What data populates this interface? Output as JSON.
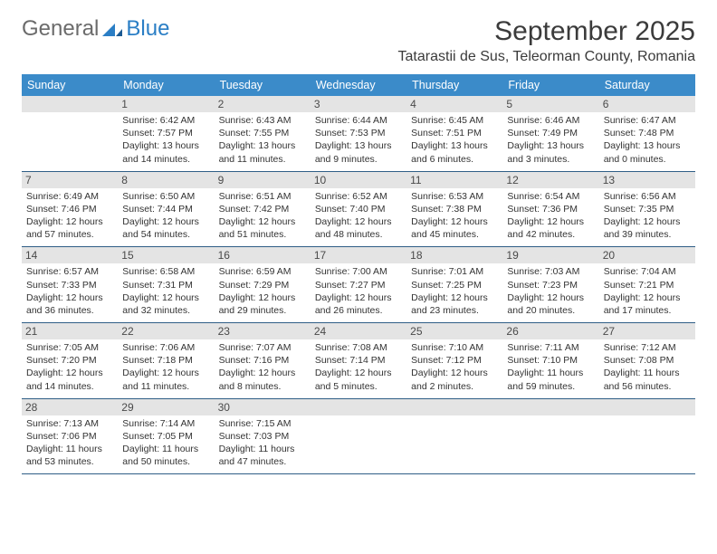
{
  "logo": {
    "part1": "General",
    "part2": "Blue"
  },
  "title": "September 2025",
  "subtitle": "Tatarastii de Sus, Teleorman County, Romania",
  "colors": {
    "header_bg": "#3b8bc9",
    "header_text": "#ffffff",
    "daynum_bg": "#e4e4e4",
    "border": "#2f5e86",
    "logo_gray": "#6b6b6b",
    "logo_blue": "#2a7ec5"
  },
  "dayNames": [
    "Sunday",
    "Monday",
    "Tuesday",
    "Wednesday",
    "Thursday",
    "Friday",
    "Saturday"
  ],
  "weeks": [
    [
      {
        "n": "",
        "sr": "",
        "ss": "",
        "d1": "",
        "d2": ""
      },
      {
        "n": "1",
        "sr": "Sunrise: 6:42 AM",
        "ss": "Sunset: 7:57 PM",
        "d1": "Daylight: 13 hours",
        "d2": "and 14 minutes."
      },
      {
        "n": "2",
        "sr": "Sunrise: 6:43 AM",
        "ss": "Sunset: 7:55 PM",
        "d1": "Daylight: 13 hours",
        "d2": "and 11 minutes."
      },
      {
        "n": "3",
        "sr": "Sunrise: 6:44 AM",
        "ss": "Sunset: 7:53 PM",
        "d1": "Daylight: 13 hours",
        "d2": "and 9 minutes."
      },
      {
        "n": "4",
        "sr": "Sunrise: 6:45 AM",
        "ss": "Sunset: 7:51 PM",
        "d1": "Daylight: 13 hours",
        "d2": "and 6 minutes."
      },
      {
        "n": "5",
        "sr": "Sunrise: 6:46 AM",
        "ss": "Sunset: 7:49 PM",
        "d1": "Daylight: 13 hours",
        "d2": "and 3 minutes."
      },
      {
        "n": "6",
        "sr": "Sunrise: 6:47 AM",
        "ss": "Sunset: 7:48 PM",
        "d1": "Daylight: 13 hours",
        "d2": "and 0 minutes."
      }
    ],
    [
      {
        "n": "7",
        "sr": "Sunrise: 6:49 AM",
        "ss": "Sunset: 7:46 PM",
        "d1": "Daylight: 12 hours",
        "d2": "and 57 minutes."
      },
      {
        "n": "8",
        "sr": "Sunrise: 6:50 AM",
        "ss": "Sunset: 7:44 PM",
        "d1": "Daylight: 12 hours",
        "d2": "and 54 minutes."
      },
      {
        "n": "9",
        "sr": "Sunrise: 6:51 AM",
        "ss": "Sunset: 7:42 PM",
        "d1": "Daylight: 12 hours",
        "d2": "and 51 minutes."
      },
      {
        "n": "10",
        "sr": "Sunrise: 6:52 AM",
        "ss": "Sunset: 7:40 PM",
        "d1": "Daylight: 12 hours",
        "d2": "and 48 minutes."
      },
      {
        "n": "11",
        "sr": "Sunrise: 6:53 AM",
        "ss": "Sunset: 7:38 PM",
        "d1": "Daylight: 12 hours",
        "d2": "and 45 minutes."
      },
      {
        "n": "12",
        "sr": "Sunrise: 6:54 AM",
        "ss": "Sunset: 7:36 PM",
        "d1": "Daylight: 12 hours",
        "d2": "and 42 minutes."
      },
      {
        "n": "13",
        "sr": "Sunrise: 6:56 AM",
        "ss": "Sunset: 7:35 PM",
        "d1": "Daylight: 12 hours",
        "d2": "and 39 minutes."
      }
    ],
    [
      {
        "n": "14",
        "sr": "Sunrise: 6:57 AM",
        "ss": "Sunset: 7:33 PM",
        "d1": "Daylight: 12 hours",
        "d2": "and 36 minutes."
      },
      {
        "n": "15",
        "sr": "Sunrise: 6:58 AM",
        "ss": "Sunset: 7:31 PM",
        "d1": "Daylight: 12 hours",
        "d2": "and 32 minutes."
      },
      {
        "n": "16",
        "sr": "Sunrise: 6:59 AM",
        "ss": "Sunset: 7:29 PM",
        "d1": "Daylight: 12 hours",
        "d2": "and 29 minutes."
      },
      {
        "n": "17",
        "sr": "Sunrise: 7:00 AM",
        "ss": "Sunset: 7:27 PM",
        "d1": "Daylight: 12 hours",
        "d2": "and 26 minutes."
      },
      {
        "n": "18",
        "sr": "Sunrise: 7:01 AM",
        "ss": "Sunset: 7:25 PM",
        "d1": "Daylight: 12 hours",
        "d2": "and 23 minutes."
      },
      {
        "n": "19",
        "sr": "Sunrise: 7:03 AM",
        "ss": "Sunset: 7:23 PM",
        "d1": "Daylight: 12 hours",
        "d2": "and 20 minutes."
      },
      {
        "n": "20",
        "sr": "Sunrise: 7:04 AM",
        "ss": "Sunset: 7:21 PM",
        "d1": "Daylight: 12 hours",
        "d2": "and 17 minutes."
      }
    ],
    [
      {
        "n": "21",
        "sr": "Sunrise: 7:05 AM",
        "ss": "Sunset: 7:20 PM",
        "d1": "Daylight: 12 hours",
        "d2": "and 14 minutes."
      },
      {
        "n": "22",
        "sr": "Sunrise: 7:06 AM",
        "ss": "Sunset: 7:18 PM",
        "d1": "Daylight: 12 hours",
        "d2": "and 11 minutes."
      },
      {
        "n": "23",
        "sr": "Sunrise: 7:07 AM",
        "ss": "Sunset: 7:16 PM",
        "d1": "Daylight: 12 hours",
        "d2": "and 8 minutes."
      },
      {
        "n": "24",
        "sr": "Sunrise: 7:08 AM",
        "ss": "Sunset: 7:14 PM",
        "d1": "Daylight: 12 hours",
        "d2": "and 5 minutes."
      },
      {
        "n": "25",
        "sr": "Sunrise: 7:10 AM",
        "ss": "Sunset: 7:12 PM",
        "d1": "Daylight: 12 hours",
        "d2": "and 2 minutes."
      },
      {
        "n": "26",
        "sr": "Sunrise: 7:11 AM",
        "ss": "Sunset: 7:10 PM",
        "d1": "Daylight: 11 hours",
        "d2": "and 59 minutes."
      },
      {
        "n": "27",
        "sr": "Sunrise: 7:12 AM",
        "ss": "Sunset: 7:08 PM",
        "d1": "Daylight: 11 hours",
        "d2": "and 56 minutes."
      }
    ],
    [
      {
        "n": "28",
        "sr": "Sunrise: 7:13 AM",
        "ss": "Sunset: 7:06 PM",
        "d1": "Daylight: 11 hours",
        "d2": "and 53 minutes."
      },
      {
        "n": "29",
        "sr": "Sunrise: 7:14 AM",
        "ss": "Sunset: 7:05 PM",
        "d1": "Daylight: 11 hours",
        "d2": "and 50 minutes."
      },
      {
        "n": "30",
        "sr": "Sunrise: 7:15 AM",
        "ss": "Sunset: 7:03 PM",
        "d1": "Daylight: 11 hours",
        "d2": "and 47 minutes."
      },
      {
        "n": "",
        "sr": "",
        "ss": "",
        "d1": "",
        "d2": ""
      },
      {
        "n": "",
        "sr": "",
        "ss": "",
        "d1": "",
        "d2": ""
      },
      {
        "n": "",
        "sr": "",
        "ss": "",
        "d1": "",
        "d2": ""
      },
      {
        "n": "",
        "sr": "",
        "ss": "",
        "d1": "",
        "d2": ""
      }
    ]
  ]
}
